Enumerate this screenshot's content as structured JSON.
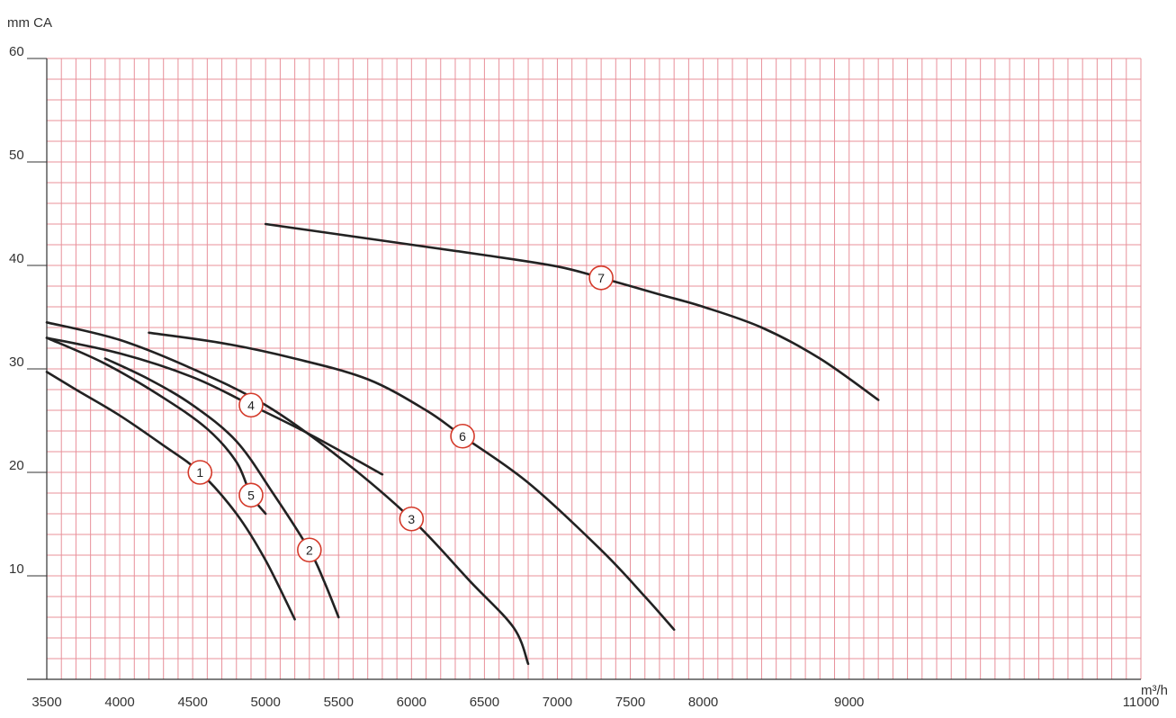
{
  "chart_data": {
    "type": "line",
    "title": "",
    "ylabel": "mm CA",
    "xlabel": "m³/h",
    "xlim": [
      3500,
      11000
    ],
    "ylim": [
      0,
      60
    ],
    "x_ticks": [
      3500,
      4000,
      4500,
      5000,
      5500,
      6000,
      6500,
      7000,
      7500,
      8000,
      9000,
      11000
    ],
    "x_tick_labels": [
      "3500",
      "4000",
      "4500",
      "5000",
      "5500",
      "6000",
      "6500",
      "7000",
      "7500",
      "8000",
      "9000",
      "11000"
    ],
    "y_ticks": [
      10,
      20,
      30,
      40,
      50,
      60
    ],
    "y_tick_labels": [
      "10",
      "20",
      "30",
      "40",
      "50",
      "60"
    ],
    "grid": true,
    "colors": {
      "grid": "#e8909a",
      "curve": "#222222",
      "marker_ring": "#d43a2a",
      "axis": "#333333"
    },
    "series": [
      {
        "label": "1",
        "label_at": [
          4550,
          20.0
        ],
        "points": [
          [
            3500,
            29.7
          ],
          [
            3700,
            28.0
          ],
          [
            4000,
            25.5
          ],
          [
            4300,
            22.6
          ],
          [
            4550,
            20.0
          ],
          [
            4800,
            16.0
          ],
          [
            5000,
            11.5
          ],
          [
            5200,
            5.8
          ]
        ]
      },
      {
        "label": "2",
        "label_at": [
          5300,
          12.5
        ],
        "points": [
          [
            3900,
            31.0
          ],
          [
            4200,
            29.0
          ],
          [
            4500,
            26.5
          ],
          [
            4800,
            23.0
          ],
          [
            5050,
            18.0
          ],
          [
            5300,
            12.5
          ],
          [
            5400,
            9.5
          ],
          [
            5500,
            6.0
          ]
        ]
      },
      {
        "label": "3",
        "label_at": [
          6000,
          15.5
        ],
        "points": [
          [
            3500,
            34.5
          ],
          [
            4000,
            32.8
          ],
          [
            4500,
            30.0
          ],
          [
            5000,
            26.5
          ],
          [
            5500,
            21.5
          ],
          [
            6000,
            15.5
          ],
          [
            6400,
            9.5
          ],
          [
            6700,
            5.0
          ],
          [
            6800,
            1.5
          ]
        ]
      },
      {
        "label": "4",
        "label_at": [
          4900,
          26.5
        ],
        "points": [
          [
            3500,
            33.0
          ],
          [
            4000,
            31.5
          ],
          [
            4500,
            29.2
          ],
          [
            4900,
            26.5
          ],
          [
            5300,
            23.7
          ],
          [
            5800,
            19.8
          ]
        ]
      },
      {
        "label": "5",
        "label_at": [
          4900,
          17.8
        ],
        "points": [
          [
            3500,
            33.0
          ],
          [
            3900,
            30.5
          ],
          [
            4300,
            27.2
          ],
          [
            4600,
            24.2
          ],
          [
            4800,
            21.0
          ],
          [
            4900,
            17.8
          ],
          [
            5000,
            16.0
          ]
        ]
      },
      {
        "label": "6",
        "label_at": [
          6350,
          23.5
        ],
        "points": [
          [
            4200,
            33.5
          ],
          [
            4700,
            32.5
          ],
          [
            5200,
            31.0
          ],
          [
            5700,
            29.0
          ],
          [
            6100,
            26.0
          ],
          [
            6350,
            23.5
          ],
          [
            6800,
            19.0
          ],
          [
            7300,
            12.5
          ],
          [
            7600,
            8.0
          ],
          [
            7800,
            4.8
          ]
        ]
      },
      {
        "label": "7",
        "label_at": [
          7300,
          38.8
        ],
        "points": [
          [
            5000,
            44.0
          ],
          [
            5500,
            43.0
          ],
          [
            6000,
            42.0
          ],
          [
            6500,
            41.0
          ],
          [
            7000,
            39.9
          ],
          [
            7300,
            38.8
          ],
          [
            7700,
            37.2
          ],
          [
            8000,
            36.0
          ],
          [
            8400,
            34.0
          ],
          [
            8800,
            31.0
          ],
          [
            9200,
            27.0
          ]
        ]
      }
    ]
  }
}
